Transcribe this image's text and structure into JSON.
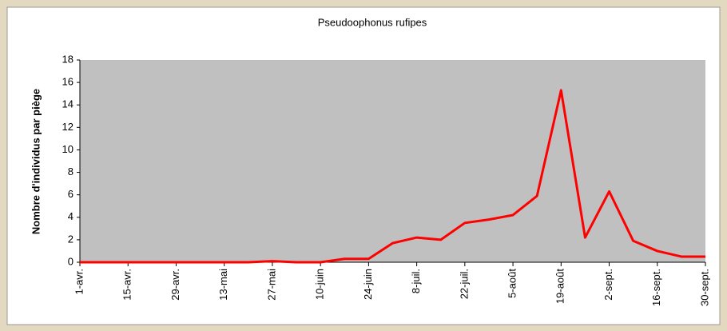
{
  "chart_data": {
    "type": "line",
    "title": "Pseudoophonus rufipes",
    "y_label": "Nombre d'individus par piège",
    "categories": [
      "1-avr.",
      null,
      "15-avr.",
      null,
      "29-avr.",
      null,
      "13-mai",
      null,
      "27-mai",
      null,
      "10-juin",
      null,
      "24-juin",
      null,
      "8-juil.",
      null,
      "22-juil.",
      null,
      "5-août",
      null,
      "19-août",
      null,
      "2-sept.",
      null,
      "16-sept.",
      null,
      "30-sept."
    ],
    "series": [
      {
        "name": "Pseudoophonus rufipes",
        "color": "#ff0000",
        "values": [
          0,
          0,
          0,
          0,
          0,
          0,
          0,
          0,
          0.1,
          0,
          0,
          0.3,
          0.3,
          1.7,
          2.2,
          2.0,
          3.5,
          3.8,
          4.2,
          5.9,
          15.3,
          2.2,
          6.3,
          1.9,
          1.0,
          0.5,
          0.5
        ]
      }
    ],
    "ylim": [
      0,
      18
    ],
    "yticks": [
      0,
      2,
      4,
      6,
      8,
      10,
      12,
      14,
      16,
      18
    ],
    "plot_background": "#c0c0c0"
  }
}
